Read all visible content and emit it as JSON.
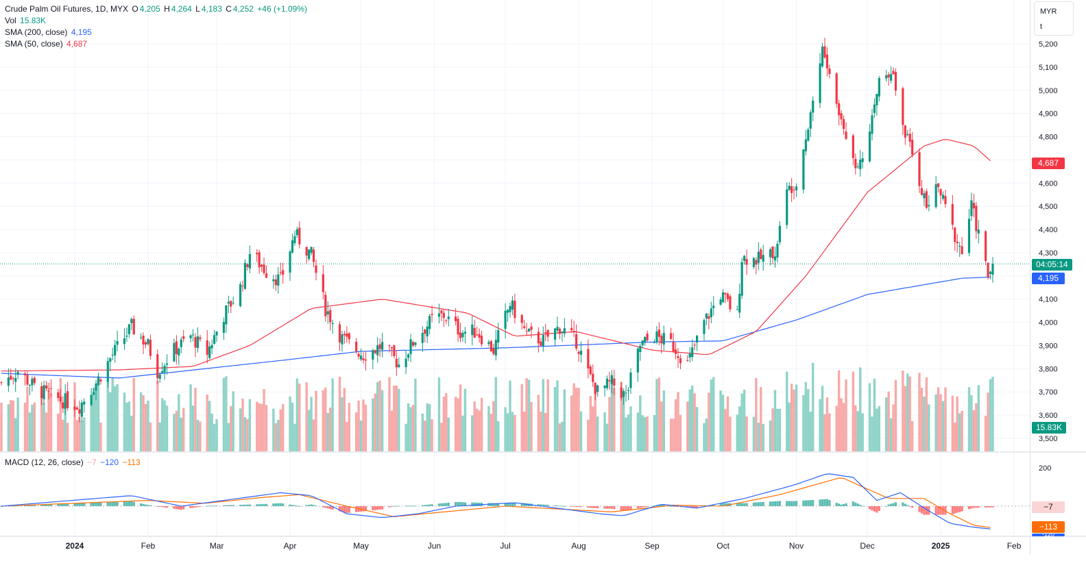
{
  "legend": {
    "symbol": "Crude Palm Oil Futures, 1D, MYX",
    "open_label": "O",
    "open": "4,205",
    "high_label": "H",
    "high": "4,264",
    "low_label": "L",
    "low": "4,183",
    "close_label": "C",
    "close": "4,252",
    "change": "+46 (+1.09%)",
    "vol_label": "Vol",
    "vol": "15.83K",
    "sma200_label": "SMA (200, close)",
    "sma200": "4,195",
    "sma50_label": "SMA (50, close)",
    "sma50": "4,687",
    "macd_label": "MACD (12, 26, close)",
    "macd_hist": "−7",
    "macd_line": "−120",
    "macd_signal": "−113"
  },
  "currency_box": {
    "currency": "MYR",
    "unit": "t"
  },
  "tags": {
    "sma50": "4,687",
    "countdown": "04:05:14",
    "sma200": "4,195",
    "volume": "15.83K",
    "macd_hist": "−7",
    "macd_signal": "−113",
    "macd_line_partial": "-120"
  },
  "colors": {
    "up": "#089981",
    "down": "#f23645",
    "vol_up": "#8fd3c8",
    "vol_down": "#f7a9a8",
    "sma200": "#2962ff",
    "sma50": "#f23645",
    "macd": "#2962ff",
    "signal": "#ff6d00"
  },
  "chart_data": {
    "type": "candlestick",
    "title": "Crude Palm Oil Futures, 1D, MYX",
    "price_axis": {
      "ticks": [
        "5,200",
        "5,100",
        "5,000",
        "4,900",
        "4,800",
        "4,700",
        "4,600",
        "4,500",
        "4,400",
        "4,300",
        "4,200",
        "4,100",
        "4,000",
        "3,900",
        "3,800",
        "3,700",
        "3,600",
        "3,500"
      ],
      "ylim": [
        3450,
        5250
      ]
    },
    "macd_axis": {
      "ticks": [
        "200"
      ],
      "ylim": [
        -200,
        280
      ]
    },
    "x_ticks": [
      "2024",
      "Feb",
      "Mar",
      "Apr",
      "May",
      "Jun",
      "Jul",
      "Aug",
      "Sep",
      "Oct",
      "Nov",
      "Dec",
      "2025",
      "Feb"
    ],
    "x_tick_dates": [
      "2024-01-01",
      "2024-02-01",
      "2024-03-01",
      "2024-04-01",
      "2024-05-01",
      "2024-06-01",
      "2024-07-01",
      "2024-08-01",
      "2024-09-01",
      "2024-10-01",
      "2024-11-01",
      "2024-12-01",
      "2025-01-01",
      "2025-02-01"
    ],
    "price_anchors": [
      {
        "date": "2023-12-01",
        "value": 3740
      },
      {
        "date": "2023-12-08",
        "value": 3790
      },
      {
        "date": "2023-12-15",
        "value": 3720
      },
      {
        "date": "2023-12-22",
        "value": 3680
      },
      {
        "date": "2024-01-03",
        "value": 3640
      },
      {
        "date": "2024-01-10",
        "value": 3740
      },
      {
        "date": "2024-01-17",
        "value": 3860
      },
      {
        "date": "2024-01-25",
        "value": 3980
      },
      {
        "date": "2024-02-01",
        "value": 3900
      },
      {
        "date": "2024-02-05",
        "value": 3790
      },
      {
        "date": "2024-02-12",
        "value": 3880
      },
      {
        "date": "2024-02-19",
        "value": 3940
      },
      {
        "date": "2024-02-26",
        "value": 3870
      },
      {
        "date": "2024-03-04",
        "value": 4030
      },
      {
        "date": "2024-03-11",
        "value": 4150
      },
      {
        "date": "2024-03-15",
        "value": 4300
      },
      {
        "date": "2024-03-22",
        "value": 4220
      },
      {
        "date": "2024-03-28",
        "value": 4180
      },
      {
        "date": "2024-04-03",
        "value": 4380
      },
      {
        "date": "2024-04-10",
        "value": 4290
      },
      {
        "date": "2024-04-16",
        "value": 4060
      },
      {
        "date": "2024-04-23",
        "value": 3930
      },
      {
        "date": "2024-05-02",
        "value": 3860
      },
      {
        "date": "2024-05-10",
        "value": 3900
      },
      {
        "date": "2024-05-17",
        "value": 3820
      },
      {
        "date": "2024-05-24",
        "value": 3930
      },
      {
        "date": "2024-05-31",
        "value": 4010
      },
      {
        "date": "2024-06-05",
        "value": 4030
      },
      {
        "date": "2024-06-12",
        "value": 3960
      },
      {
        "date": "2024-06-19",
        "value": 3960
      },
      {
        "date": "2024-06-26",
        "value": 3880
      },
      {
        "date": "2024-07-03",
        "value": 4080
      },
      {
        "date": "2024-07-10",
        "value": 3950
      },
      {
        "date": "2024-07-17",
        "value": 3920
      },
      {
        "date": "2024-07-24",
        "value": 3980
      },
      {
        "date": "2024-07-31",
        "value": 3920
      },
      {
        "date": "2024-08-05",
        "value": 3780
      },
      {
        "date": "2024-08-09",
        "value": 3700
      },
      {
        "date": "2024-08-15",
        "value": 3740
      },
      {
        "date": "2024-08-21",
        "value": 3680
      },
      {
        "date": "2024-08-27",
        "value": 3900
      },
      {
        "date": "2024-09-02",
        "value": 3940
      },
      {
        "date": "2024-09-09",
        "value": 3910
      },
      {
        "date": "2024-09-16",
        "value": 3820
      },
      {
        "date": "2024-09-23",
        "value": 4000
      },
      {
        "date": "2024-09-30",
        "value": 4120
      },
      {
        "date": "2024-10-07",
        "value": 4030
      },
      {
        "date": "2024-10-09",
        "value": 4280
      },
      {
        "date": "2024-10-16",
        "value": 4270
      },
      {
        "date": "2024-10-23",
        "value": 4300
      },
      {
        "date": "2024-10-28",
        "value": 4560
      },
      {
        "date": "2024-11-01",
        "value": 4620
      },
      {
        "date": "2024-11-06",
        "value": 4850
      },
      {
        "date": "2024-11-12",
        "value": 5180
      },
      {
        "date": "2024-11-19",
        "value": 4900
      },
      {
        "date": "2024-11-26",
        "value": 4680
      },
      {
        "date": "2024-12-02",
        "value": 4800
      },
      {
        "date": "2024-12-06",
        "value": 5050
      },
      {
        "date": "2024-12-11",
        "value": 5100
      },
      {
        "date": "2024-12-16",
        "value": 4850
      },
      {
        "date": "2024-12-20",
        "value": 4720
      },
      {
        "date": "2024-12-26",
        "value": 4500
      },
      {
        "date": "2024-12-31",
        "value": 4580
      },
      {
        "date": "2025-01-06",
        "value": 4400
      },
      {
        "date": "2025-01-10",
        "value": 4300
      },
      {
        "date": "2025-01-14",
        "value": 4500
      },
      {
        "date": "2025-01-17",
        "value": 4380
      },
      {
        "date": "2025-01-21",
        "value": 4200
      },
      {
        "date": "2025-01-23",
        "value": 4252
      }
    ],
    "series": [
      {
        "name": "SMA (200, close)",
        "values_at": [
          {
            "date": "2023-12-01",
            "value": 3780
          },
          {
            "date": "2024-01-20",
            "value": 3760
          },
          {
            "date": "2024-04-01",
            "value": 3840
          },
          {
            "date": "2024-05-01",
            "value": 3875
          },
          {
            "date": "2024-07-01",
            "value": 3890
          },
          {
            "date": "2024-09-01",
            "value": 3915
          },
          {
            "date": "2024-10-01",
            "value": 3920
          },
          {
            "date": "2024-11-01",
            "value": 4010
          },
          {
            "date": "2024-12-01",
            "value": 4120
          },
          {
            "date": "2025-01-10",
            "value": 4190
          },
          {
            "date": "2025-01-23",
            "value": 4195
          }
        ]
      },
      {
        "name": "SMA (50, close)",
        "values_at": [
          {
            "date": "2023-12-01",
            "value": 3790
          },
          {
            "date": "2024-01-20",
            "value": 3795
          },
          {
            "date": "2024-02-20",
            "value": 3810
          },
          {
            "date": "2024-03-15",
            "value": 3900
          },
          {
            "date": "2024-04-10",
            "value": 4060
          },
          {
            "date": "2024-05-10",
            "value": 4100
          },
          {
            "date": "2024-06-15",
            "value": 4040
          },
          {
            "date": "2024-07-05",
            "value": 3940
          },
          {
            "date": "2024-07-31",
            "value": 3960
          },
          {
            "date": "2024-09-01",
            "value": 3880
          },
          {
            "date": "2024-09-25",
            "value": 3860
          },
          {
            "date": "2024-10-15",
            "value": 3960
          },
          {
            "date": "2024-11-05",
            "value": 4200
          },
          {
            "date": "2024-12-01",
            "value": 4560
          },
          {
            "date": "2024-12-25",
            "value": 4760
          },
          {
            "date": "2025-01-03",
            "value": 4790
          },
          {
            "date": "2025-01-15",
            "value": 4760
          },
          {
            "date": "2025-01-23",
            "value": 4687
          }
        ]
      },
      {
        "name": "MACD",
        "values_at": [
          {
            "date": "2023-12-01",
            "value": 0
          },
          {
            "date": "2024-01-25",
            "value": 55
          },
          {
            "date": "2024-02-15",
            "value": 0
          },
          {
            "date": "2024-03-10",
            "value": 40
          },
          {
            "date": "2024-03-28",
            "value": 70
          },
          {
            "date": "2024-04-10",
            "value": 55
          },
          {
            "date": "2024-04-25",
            "value": -40
          },
          {
            "date": "2024-05-10",
            "value": -60
          },
          {
            "date": "2024-05-25",
            "value": -40
          },
          {
            "date": "2024-06-10",
            "value": 0
          },
          {
            "date": "2024-07-05",
            "value": 18
          },
          {
            "date": "2024-08-10",
            "value": -40
          },
          {
            "date": "2024-08-20",
            "value": -50
          },
          {
            "date": "2024-09-05",
            "value": 10
          },
          {
            "date": "2024-09-20",
            "value": -10
          },
          {
            "date": "2024-10-10",
            "value": 40
          },
          {
            "date": "2024-10-31",
            "value": 110
          },
          {
            "date": "2024-11-14",
            "value": 170
          },
          {
            "date": "2024-11-25",
            "value": 150
          },
          {
            "date": "2024-12-05",
            "value": 30
          },
          {
            "date": "2024-12-15",
            "value": 70
          },
          {
            "date": "2024-12-25",
            "value": -10
          },
          {
            "date": "2025-01-05",
            "value": -90
          },
          {
            "date": "2025-01-15",
            "value": -110
          },
          {
            "date": "2025-01-23",
            "value": -120
          }
        ]
      },
      {
        "name": "Signal",
        "values_at": [
          {
            "date": "2023-12-01",
            "value": 0
          },
          {
            "date": "2024-02-01",
            "value": 30
          },
          {
            "date": "2024-02-25",
            "value": 15
          },
          {
            "date": "2024-03-20",
            "value": 45
          },
          {
            "date": "2024-04-05",
            "value": 60
          },
          {
            "date": "2024-04-25",
            "value": 0
          },
          {
            "date": "2024-05-15",
            "value": -55
          },
          {
            "date": "2024-06-05",
            "value": -30
          },
          {
            "date": "2024-07-01",
            "value": 0
          },
          {
            "date": "2024-08-15",
            "value": -30
          },
          {
            "date": "2024-09-10",
            "value": 5
          },
          {
            "date": "2024-10-01",
            "value": 0
          },
          {
            "date": "2024-10-25",
            "value": 60
          },
          {
            "date": "2024-11-20",
            "value": 150
          },
          {
            "date": "2024-12-10",
            "value": 40
          },
          {
            "date": "2024-12-25",
            "value": 40
          },
          {
            "date": "2025-01-05",
            "value": -40
          },
          {
            "date": "2025-01-15",
            "value": -100
          },
          {
            "date": "2025-01-23",
            "value": -113
          }
        ]
      }
    ],
    "volume": {
      "last": "15.83K"
    }
  }
}
